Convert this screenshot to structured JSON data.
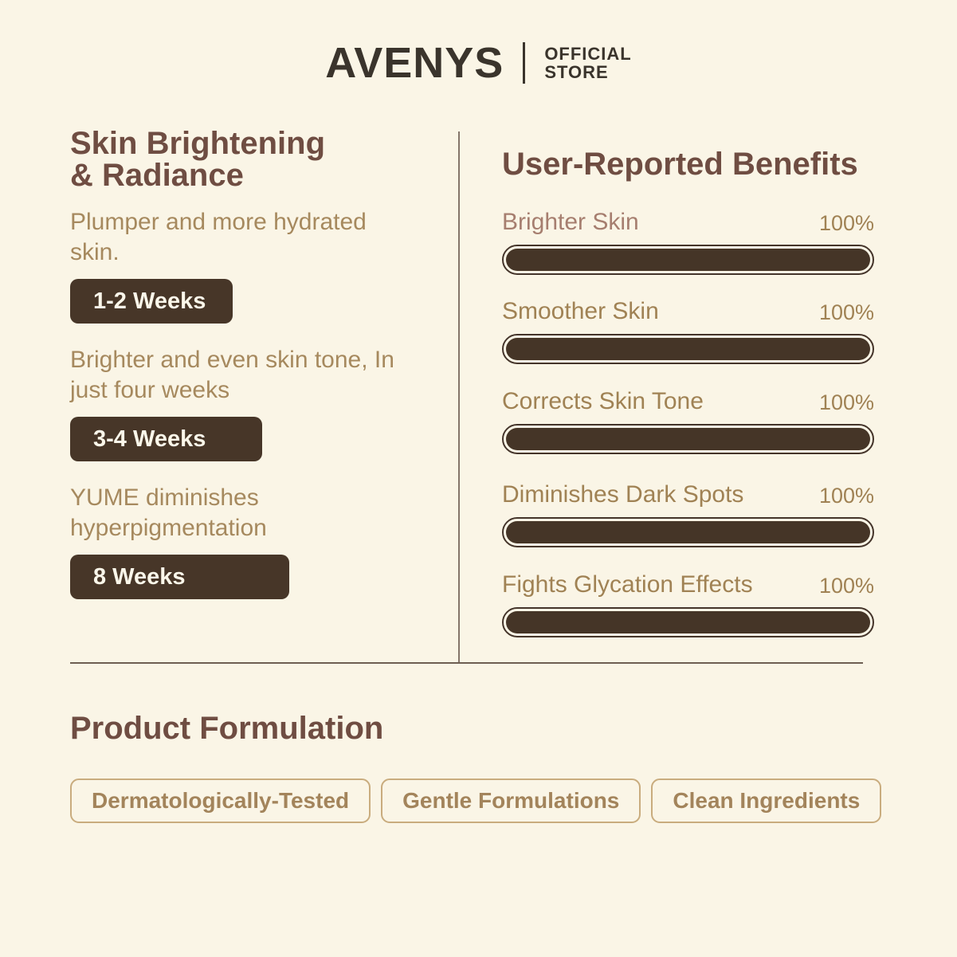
{
  "colors": {
    "background": "#faf5e6",
    "logo_text": "#3a342c",
    "heading": "#6f4d42",
    "body_text": "#a6895e",
    "badge_background": "#473628",
    "badge_text": "#fbf7ea",
    "bar_fill": "#453527",
    "bar_border": "#44342a",
    "tag_border": "#c9ac7e",
    "tag_text": "#a3845b"
  },
  "header": {
    "brand": "AVENYS",
    "suffix_line1": "OFFICIAL",
    "suffix_line2": "STORE"
  },
  "left_panel": {
    "title": "Skin Brightening\n& Radiance",
    "items": [
      {
        "text": "Plumper and more hydrated\nskin.",
        "badge": "1-2 Weeks"
      },
      {
        "text": "Brighter and even skin tone, In\njust four weeks",
        "badge": "3-4 Weeks"
      },
      {
        "text": "YUME diminishes\nhyperpigmentation",
        "badge": "8 Weeks"
      }
    ]
  },
  "right_panel": {
    "title": "User-Reported Benefits",
    "benefits": [
      {
        "label": "Brighter Skin",
        "label_color": "#a67e6f",
        "value_label": "100%",
        "percent": 100
      },
      {
        "label": "Smoother Skin",
        "label_color": "#a08254",
        "value_label": "100%",
        "percent": 100
      },
      {
        "label": "Corrects Skin Tone",
        "label_color": "#a08254",
        "value_label": "100%",
        "percent": 100
      },
      {
        "label": "Diminishes Dark Spots",
        "label_color": "#a08254",
        "value_label": "100%",
        "percent": 100
      },
      {
        "label": "Fights Glycation Effects",
        "label_color": "#a08254",
        "value_label": "100%",
        "percent": 100
      }
    ]
  },
  "formulation": {
    "title": "Product Formulation",
    "tags": [
      "Dermatologically-Tested",
      "Gentle Formulations",
      "Clean Ingredients"
    ]
  }
}
